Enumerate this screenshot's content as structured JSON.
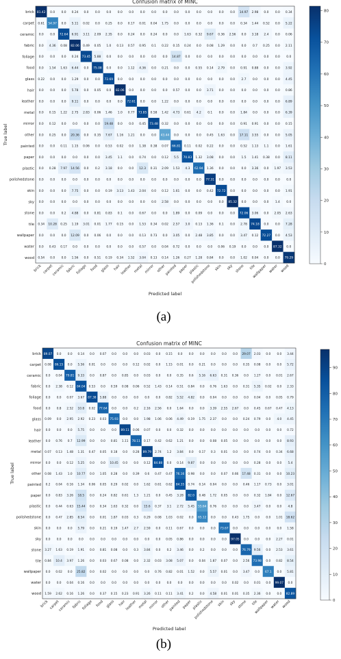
{
  "captions": [
    "(a)",
    "(b)"
  ],
  "chart_data": [
    {
      "type": "heatmap",
      "title": "Confusion matrix of MINC",
      "xlabel": "Predicted label",
      "ylabel": "True label",
      "labels": [
        "brick",
        "carpet",
        "ceramic",
        "fabric",
        "foliage",
        "food",
        "glass",
        "hair",
        "leather",
        "metal",
        "mirror",
        "other",
        "painted",
        "paper",
        "plastic",
        "polishedstone",
        "skin",
        "sky",
        "stone",
        "tile",
        "wallpaper",
        "water",
        "wood"
      ],
      "colorbar_ticks": [
        0,
        10,
        20,
        30,
        40,
        50,
        60,
        70,
        80
      ],
      "vmin": 0,
      "vmax": 81.42,
      "colormap": "Blues",
      "matrix": [
        [
          81.42,
          0.0,
          0.0,
          0.24,
          0.0,
          0.0,
          0.0,
          0.0,
          0.0,
          0.0,
          0.0,
          0.0,
          0.0,
          0.0,
          0.0,
          0.0,
          0.0,
          0.0,
          14.97,
          2.98,
          0.0,
          0.0,
          0.34
        ],
        [
          0.61,
          54.97,
          0.0,
          5.11,
          0.02,
          0.0,
          0.25,
          0.0,
          0.17,
          0.01,
          0.04,
          1.75,
          0.0,
          0.0,
          0.0,
          0.0,
          0.0,
          0.0,
          0.34,
          1.44,
          0.52,
          0.0,
          5.22
        ],
        [
          0.0,
          0.0,
          72.64,
          6.91,
          3.11,
          2.09,
          2.35,
          0.0,
          0.24,
          0.0,
          0.24,
          0.0,
          0.0,
          1.63,
          0.32,
          9.67,
          0.36,
          2.56,
          0.0,
          3.18,
          2.4,
          0.0,
          0.06
        ],
        [
          0.0,
          4.36,
          0.08,
          82.06,
          0.49,
          0.05,
          1.0,
          0.13,
          0.57,
          0.95,
          0.1,
          0.22,
          0.15,
          0.24,
          0.0,
          0.08,
          1.29,
          0.0,
          0.0,
          0.7,
          0.25,
          0.0,
          2.11
        ],
        [
          0.0,
          0.0,
          0.0,
          0.24,
          73.45,
          5.88,
          0.0,
          0.0,
          0.0,
          0.0,
          0.0,
          0.0,
          14.87,
          0.0,
          0.0,
          0.0,
          0.0,
          0.0,
          0.0,
          0.0,
          0.0,
          0.0,
          0.0
        ],
        [
          0.0,
          1.54,
          1.63,
          6.44,
          0.0,
          75.08,
          0.0,
          0.0,
          1.12,
          4.36,
          0.0,
          0.21,
          0.0,
          0.0,
          0.55,
          0.14,
          2.79,
          0.0,
          0.91,
          0.88,
          0.0,
          0.0,
          3.92
        ],
        [
          0.22,
          0.0,
          0.0,
          1.29,
          0.0,
          0.0,
          72.69,
          0.0,
          0.0,
          0.0,
          0.0,
          0.0,
          0.0,
          0.0,
          0.0,
          0.0,
          0.0,
          0.0,
          2.7,
          0.0,
          0.0,
          0.0,
          4.45
        ],
        [
          0.0,
          0.0,
          0.0,
          5.78,
          0.0,
          0.05,
          0.0,
          82.06,
          0.0,
          0.0,
          0.0,
          0.0,
          0.57,
          0.0,
          0.0,
          3.71,
          0.0,
          0.0,
          0.0,
          0.0,
          0.0,
          0.0,
          0.86
        ],
        [
          0.0,
          0.0,
          0.0,
          9.11,
          0.0,
          0.0,
          0.0,
          0.0,
          72.61,
          0.0,
          0.0,
          1.22,
          0.0,
          0.0,
          0.0,
          0.0,
          0.0,
          0.0,
          0.0,
          0.0,
          0.0,
          0.0,
          6.89
        ],
        [
          0.0,
          0.15,
          1.22,
          2.75,
          2.83,
          0.06,
          1.46,
          1.0,
          0.77,
          73.85,
          0.58,
          1.42,
          4.73,
          0.61,
          4.2,
          0.1,
          0.0,
          0.0,
          1.84,
          0.0,
          0.0,
          0.0,
          6.39
        ],
        [
          0.0,
          0.12,
          0.0,
          0.0,
          0.0,
          0.0,
          19.48,
          0.0,
          0.0,
          0.45,
          73.48,
          0.32,
          0.0,
          0.0,
          0.0,
          0.0,
          0.0,
          0.0,
          0.91,
          0.91,
          0.0,
          0.0,
          0.15
        ],
        [
          0.0,
          0.25,
          0.0,
          20.36,
          0.0,
          0.35,
          7.67,
          1.16,
          1.21,
          0.0,
          0.0,
          43.44,
          0.0,
          0.0,
          0.0,
          0.45,
          1.63,
          0.0,
          17.11,
          3.55,
          0.0,
          0.0,
          5.05
        ],
        [
          0.0,
          0.0,
          0.11,
          1.15,
          0.06,
          0.0,
          0.53,
          0.02,
          0.0,
          1.38,
          0.38,
          0.07,
          66.81,
          0.11,
          0.02,
          0.22,
          0.0,
          0.0,
          0.52,
          1.13,
          1.1,
          0.0,
          1.61
        ],
        [
          0.0,
          0.0,
          0.0,
          0.0,
          0.0,
          0.0,
          3.45,
          1.1,
          0.0,
          0.74,
          0.0,
          0.12,
          5.5,
          70.83,
          1.32,
          3.08,
          0.0,
          0.0,
          1.5,
          1.41,
          0.38,
          0.0,
          8.11
        ],
        [
          0.0,
          0.28,
          7.97,
          14.56,
          0.0,
          0.2,
          3.18,
          0.0,
          0.0,
          12.3,
          0.31,
          2.09,
          1.53,
          4.3,
          62.94,
          1.36,
          0.0,
          0.0,
          0.0,
          3.36,
          0.0,
          1.97,
          3.53
        ],
        [
          0.0,
          0.0,
          0.0,
          0.0,
          0.0,
          0.0,
          0.0,
          0.0,
          0.0,
          0.0,
          0.0,
          0.0,
          0.0,
          0.0,
          0.0,
          77.31,
          0.0,
          0.0,
          0.0,
          0.0,
          0.0,
          0.0,
          0.0
        ],
        [
          0.0,
          0.0,
          0.0,
          7.75,
          0.0,
          0.0,
          0.19,
          3.13,
          1.43,
          2.04,
          0.0,
          0.12,
          1.61,
          0.0,
          0.0,
          0.42,
          72.72,
          0.0,
          0.0,
          0.0,
          0.0,
          0.0,
          1.91
        ],
        [
          0.0,
          0.0,
          0.0,
          0.0,
          0.0,
          0.0,
          0.0,
          0.0,
          0.0,
          0.0,
          0.0,
          2.58,
          0.0,
          0.0,
          0.0,
          0.0,
          0.0,
          85.32,
          0.0,
          0.0,
          0.0,
          1.4,
          0.0
        ],
        [
          0.0,
          0.0,
          0.2,
          4.88,
          0.0,
          0.81,
          0.83,
          0.1,
          0.0,
          0.67,
          0.0,
          0.0,
          1.89,
          0.0,
          0.09,
          0.0,
          0.0,
          0.0,
          72.06,
          3.06,
          0.0,
          2.05,
          2.63
        ],
        [
          0.34,
          10.28,
          0.25,
          1.19,
          3.01,
          0.01,
          1.77,
          0.15,
          0.0,
          1.53,
          0.34,
          0.02,
          2.57,
          3.0,
          0.13,
          1.36,
          0.1,
          0.0,
          2.78,
          74.18,
          0.0,
          0.0,
          7.28
        ],
        [
          0.0,
          0.0,
          0.0,
          12.09,
          0.0,
          0.06,
          0.0,
          0.0,
          0.0,
          0.13,
          0.73,
          0.0,
          3.05,
          0.0,
          2.48,
          3.85,
          0.0,
          0.0,
          3.47,
          0.12,
          72.27,
          0.0,
          4.53
        ],
        [
          0.0,
          0.43,
          0.17,
          0.0,
          0.0,
          0.0,
          0.0,
          0.0,
          0.0,
          0.57,
          0.0,
          0.04,
          0.72,
          0.0,
          0.0,
          0.0,
          0.06,
          0.19,
          0.0,
          0.0,
          0.0,
          87.32,
          0.0
        ],
        [
          0.54,
          0.0,
          0.0,
          1.56,
          0.0,
          0.51,
          0.19,
          0.34,
          1.52,
          3.04,
          0.13,
          0.14,
          1.26,
          0.27,
          1.28,
          0.84,
          0.0,
          0.0,
          1.02,
          0.04,
          0.0,
          0.0,
          79.29
        ]
      ]
    },
    {
      "type": "heatmap",
      "title": "Confusion matrix of MINC",
      "xlabel": "Predicted label",
      "ylabel": "True label",
      "labels": [
        "brick",
        "carpet",
        "ceramic",
        "fabric",
        "foliage",
        "food",
        "glass",
        "hair",
        "leather",
        "metal",
        "mirror",
        "other",
        "painted",
        "paper",
        "plastic",
        "polishedstone",
        "skin",
        "sky",
        "stone",
        "tile",
        "wallpaper",
        "water",
        "wood"
      ],
      "colorbar_ticks": [
        0,
        10,
        20,
        30,
        40,
        50,
        60,
        70,
        80,
        90
      ],
      "vmin": 0,
      "vmax": 97.05,
      "colormap": "Blues",
      "matrix": [
        [
          89.07,
          0.0,
          0.0,
          0.14,
          0.0,
          0.07,
          0.0,
          0.0,
          0.0,
          0.03,
          0.0,
          0.15,
          0.0,
          0.0,
          0.0,
          0.0,
          0.0,
          0.0,
          29.07,
          2.03,
          0.0,
          0.0,
          3.44
        ],
        [
          0.08,
          86.15,
          0.0,
          5.56,
          0.01,
          0.0,
          0.0,
          0.0,
          0.12,
          0.02,
          0.0,
          1.15,
          0.01,
          0.0,
          0.21,
          0.0,
          0.0,
          0.0,
          0.35,
          0.08,
          0.0,
          0.0,
          5.72
        ],
        [
          0.0,
          0.04,
          79.81,
          9.33,
          0.0,
          0.87,
          0.0,
          0.85,
          0.0,
          0.03,
          0.0,
          0.0,
          0.35,
          0.6,
          5.16,
          6.63,
          0.31,
          0.36,
          0.0,
          1.27,
          0.0,
          0.01,
          2.67
        ],
        [
          0.0,
          2.38,
          0.12,
          84.04,
          0.53,
          0.0,
          0.59,
          0.08,
          0.06,
          0.52,
          1.43,
          0.14,
          0.51,
          0.84,
          0.0,
          0.76,
          1.63,
          0.0,
          0.31,
          5.35,
          0.02,
          0.0,
          2.33
        ],
        [
          0.0,
          0.0,
          0.07,
          3.67,
          87.38,
          5.88,
          0.0,
          0.0,
          0.0,
          0.0,
          0.0,
          0.82,
          5.52,
          4.82,
          0.0,
          0.04,
          0.0,
          0.0,
          0.0,
          0.04,
          0.0,
          0.05,
          0.79
        ],
        [
          0.0,
          0.8,
          2.52,
          10.8,
          0.02,
          77.64,
          0.0,
          0.0,
          0.2,
          2.16,
          2.56,
          0.0,
          1.64,
          0.0,
          0.0,
          3.39,
          2.55,
          2.67,
          0.0,
          0.45,
          0.67,
          0.47,
          4.13
        ],
        [
          0.09,
          0.0,
          2.95,
          2.92,
          0.23,
          0.03,
          75.93,
          0.0,
          0.0,
          1.98,
          1.06,
          0.06,
          4.49,
          0.19,
          1.75,
          2.37,
          0.0,
          0.0,
          0.24,
          0.79,
          0.0,
          4.0,
          4.45
        ],
        [
          0.0,
          0.0,
          0.0,
          5.75,
          0.0,
          0.0,
          0.0,
          89.11,
          0.06,
          0.07,
          0.0,
          0.0,
          0.32,
          0.0,
          0.0,
          0.0,
          0.0,
          0.0,
          0.0,
          0.0,
          0.0,
          0.0,
          0.72
        ],
        [
          0.0,
          0.76,
          0.7,
          12.99,
          0.0,
          0.0,
          0.81,
          1.11,
          78.11,
          0.17,
          0.42,
          0.62,
          1.21,
          0.0,
          0.0,
          0.08,
          0.05,
          0.0,
          0.0,
          0.0,
          0.0,
          0.0,
          8.93
        ],
        [
          0.07,
          0.13,
          1.48,
          1.31,
          0.47,
          0.05,
          0.18,
          0.0,
          0.28,
          89.79,
          2.74,
          1.2,
          3.84,
          0.0,
          0.17,
          0.3,
          0.01,
          0.0,
          0.0,
          0.74,
          0.0,
          0.34,
          6.68
        ],
        [
          0.0,
          0.0,
          0.12,
          5.25,
          0.0,
          0.0,
          10.45,
          0.0,
          0.0,
          0.12,
          84.88,
          0.0,
          0.14,
          9.87,
          0.0,
          0.0,
          0.0,
          0.0,
          0.0,
          0.28,
          0.0,
          0.0,
          5.4
        ],
        [
          0.08,
          1.43,
          1.0,
          10.77,
          0.0,
          1.05,
          0.28,
          0.0,
          0.39,
          0.6,
          0.47,
          0.47,
          76.16,
          0.98,
          0.0,
          0.0,
          0.07,
          0.66,
          17.48,
          0.31,
          0.0,
          0.0,
          10.23
        ],
        [
          0.2,
          0.04,
          0.16,
          1.34,
          0.06,
          0.05,
          0.29,
          0.02,
          0.0,
          1.62,
          0.61,
          0.62,
          84.35,
          0.74,
          0.14,
          0.04,
          0.0,
          0.0,
          0.46,
          1.17,
          0.73,
          0.0,
          3.01
        ],
        [
          0.0,
          0.83,
          3.26,
          18.5,
          0.0,
          0.24,
          0.82,
          0.61,
          1.3,
          1.21,
          0.0,
          0.45,
          3.28,
          82.0,
          0.48,
          1.72,
          0.05,
          0.0,
          0.0,
          0.32,
          1.84,
          0.0,
          12.67
        ],
        [
          0.0,
          0.44,
          0.63,
          15.44,
          0.0,
          0.34,
          1.63,
          0.32,
          0.0,
          15.6,
          0.37,
          3.1,
          2.72,
          5.45,
          55.64,
          0.76,
          0.0,
          0.0,
          0.0,
          3.47,
          0.0,
          0.0,
          4.8
        ],
        [
          0.0,
          0.47,
          2.85,
          8.54,
          0.0,
          0.01,
          1.87,
          0.03,
          0.3,
          0.29,
          0.08,
          1.03,
          0.02,
          0.0,
          65.12,
          0.0,
          0.0,
          0.43,
          1.75,
          0.0,
          0.0,
          1.01,
          18.62
        ],
        [
          0.0,
          0.0,
          0.0,
          5.79,
          0.0,
          0.21,
          0.19,
          1.47,
          2.7,
          2.59,
          0.0,
          0.11,
          0.67,
          0.0,
          0.0,
          0.0,
          73.67,
          0.0,
          0.0,
          0.0,
          0.0,
          0.0,
          1.58
        ],
        [
          0.0,
          0.0,
          0.0,
          0.0,
          0.0,
          0.0,
          0.0,
          0.0,
          0.0,
          0.0,
          0.0,
          0.05,
          0.86,
          0.0,
          0.0,
          0.0,
          0.0,
          97.05,
          0.0,
          0.0,
          0.0,
          2.27,
          0.01
        ],
        [
          3.27,
          1.63,
          0.19,
          1.91,
          0.0,
          0.81,
          0.08,
          0.0,
          0.3,
          3.84,
          0.0,
          0.2,
          3.46,
          0.0,
          0.2,
          0.0,
          0.0,
          0.0,
          76.79,
          9.56,
          0.0,
          2.53,
          3.61
        ],
        [
          0.84,
          10.4,
          3.97,
          1.26,
          0.0,
          0.03,
          0.67,
          0.08,
          0.0,
          2.32,
          0.03,
          3.08,
          5.07,
          0.0,
          0.04,
          1.87,
          0.07,
          0.0,
          2.56,
          73.98,
          0.0,
          0.82,
          8.54
        ],
        [
          0.0,
          0.02,
          0.0,
          25.82,
          0.0,
          0.02,
          0.0,
          0.0,
          0.0,
          0.0,
          0.76,
          0.82,
          0.01,
          1.52,
          0.0,
          5.57,
          0.01,
          0.0,
          3.47,
          0.0,
          67.1,
          0.0,
          5.81
        ],
        [
          0.0,
          0.0,
          0.04,
          0.16,
          0.0,
          0.0,
          0.0,
          0.0,
          0.0,
          0.0,
          0.0,
          0.0,
          0.0,
          0.0,
          0.0,
          0.0,
          0.0,
          0.02,
          0.0,
          0.01,
          0.0,
          99.07,
          0.0
        ],
        [
          1.59,
          2.62,
          0.16,
          1.26,
          0.0,
          0.37,
          0.15,
          0.23,
          0.91,
          3.26,
          0.11,
          0.11,
          3.41,
          0.2,
          0.0,
          4.58,
          0.01,
          0.01,
          0.35,
          2.36,
          0.0,
          0.0,
          82.89
        ]
      ]
    }
  ]
}
